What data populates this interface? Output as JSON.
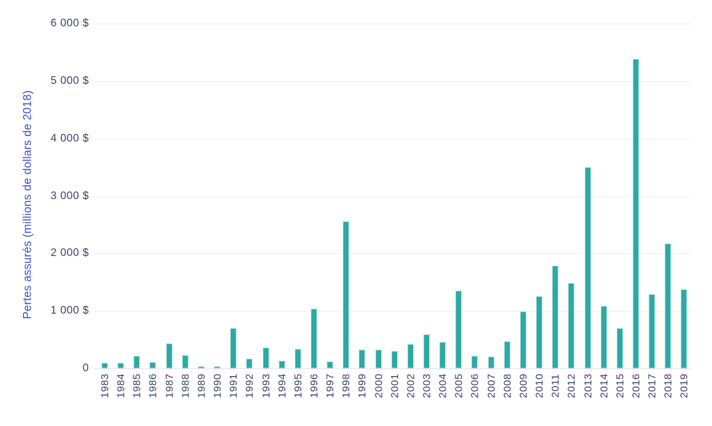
{
  "chart_data": {
    "type": "bar",
    "title": "",
    "xlabel": "",
    "ylabel": "Pertes assurés (millions de dollars de 2018)",
    "ylim": [
      0,
      6000
    ],
    "grid": true,
    "legend": false,
    "y_ticks": [
      {
        "label": "6 000 $",
        "value": 6000
      },
      {
        "label": "5 000 $",
        "value": 5000
      },
      {
        "label": "4 000 $",
        "value": 4000
      },
      {
        "label": "3 000 $",
        "value": 3000
      },
      {
        "label": "2 000 $",
        "value": 2000
      },
      {
        "label": "1 000 $",
        "value": 1000
      },
      {
        "label": "0",
        "value": 0
      }
    ],
    "categories": [
      "1983",
      "1984",
      "1985",
      "1986",
      "1987",
      "1988",
      "1989",
      "1990",
      "1991",
      "1992",
      "1993",
      "1994",
      "1995",
      "1996",
      "1997",
      "1998",
      "1999",
      "2000",
      "2001",
      "2002",
      "2003",
      "2004",
      "2005",
      "2006",
      "2007",
      "2008",
      "2009",
      "2010",
      "2011",
      "2012",
      "2013",
      "2014",
      "2015",
      "2016",
      "2017",
      "2018",
      "2019"
    ],
    "values": [
      95,
      95,
      220,
      110,
      440,
      225,
      40,
      40,
      705,
      175,
      365,
      135,
      335,
      1035,
      125,
      2555,
      330,
      330,
      300,
      420,
      590,
      455,
      1350,
      220,
      205,
      465,
      990,
      1260,
      1785,
      1490,
      3505,
      1090,
      695,
      5390,
      1295,
      2175,
      1380
    ],
    "colors": {
      "bar_fill": "#2ea9a2",
      "bar_edge": "#9ed9d5",
      "axis_text": "#3a3f63",
      "ylabel_text": "#3b4ed8",
      "gridline": "#ededf1",
      "baseline": "#e2e2e8",
      "background": "#ffffff"
    }
  }
}
